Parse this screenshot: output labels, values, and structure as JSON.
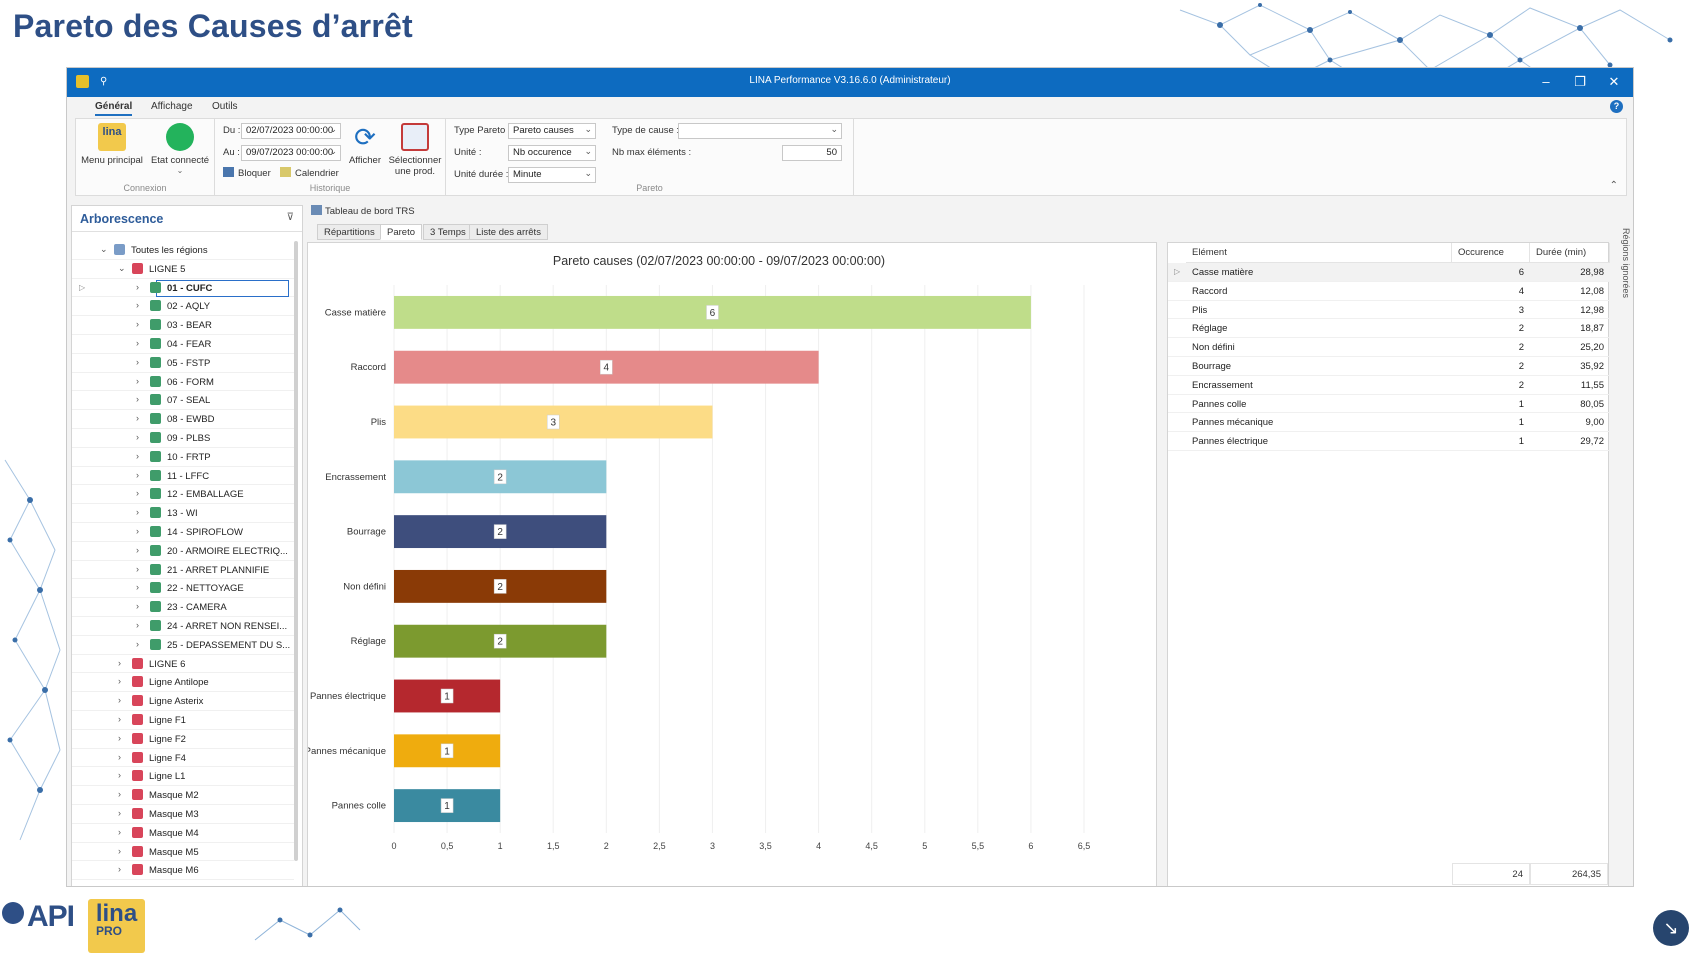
{
  "slide_title": "Pareto des Causes d’arrêt",
  "window": {
    "title": "LINA Performance  V3.16.6.0  (Administrateur)"
  },
  "ribbon_tabs": [
    "Général",
    "Affichage",
    "Outils"
  ],
  "ribbon": {
    "menu_principal": "Menu principal",
    "menu_icon_text": "lina",
    "etat_connecte": "Etat connecté",
    "group_connexion": "Connexion",
    "du_label": "Du :",
    "du_value": "02/07/2023 00:00:00",
    "au_label": "Au :",
    "au_value": "09/07/2023 00:00:00",
    "bloquer": "Bloquer",
    "calendrier": "Calendrier",
    "afficher": "Afficher",
    "selectionner": "Sélectionner",
    "selectionner2": "une prod.",
    "group_historique": "Historique",
    "type_pareto_label": "Type Pareto :",
    "type_pareto_value": "Pareto causes",
    "unite_label": "Unité :",
    "unite_value": "Nb occurence",
    "unite_duree_label": "Unité durée :",
    "unite_duree_value": "Minute",
    "type_cause_label": "Type de cause :",
    "type_cause_value": "",
    "nb_max_label": "Nb max éléments :",
    "nb_max_value": "50",
    "group_pareto": "Pareto"
  },
  "tree": {
    "header": "Arborescence",
    "items": [
      {
        "label": "Toutes les régions",
        "level": 0,
        "expanded": true,
        "color": "#7a9cc7"
      },
      {
        "label": "LIGNE 5",
        "level": 1,
        "expanded": true,
        "color": "#d8455a"
      },
      {
        "label": "01 - CUFC",
        "level": 2,
        "selected": true,
        "color": "#3f9c6a"
      },
      {
        "label": "02 - AQLY",
        "level": 2,
        "color": "#3f9c6a"
      },
      {
        "label": "03 - BEAR",
        "level": 2,
        "color": "#3f9c6a"
      },
      {
        "label": "04 - FEAR",
        "level": 2,
        "color": "#3f9c6a"
      },
      {
        "label": "05 - FSTP",
        "level": 2,
        "color": "#3f9c6a"
      },
      {
        "label": "06 - FORM",
        "level": 2,
        "color": "#3f9c6a"
      },
      {
        "label": "07 - SEAL",
        "level": 2,
        "color": "#3f9c6a"
      },
      {
        "label": "08 - EWBD",
        "level": 2,
        "color": "#3f9c6a"
      },
      {
        "label": "09 - PLBS",
        "level": 2,
        "color": "#3f9c6a"
      },
      {
        "label": "10 - FRTP",
        "level": 2,
        "color": "#3f9c6a"
      },
      {
        "label": "11 - LFFC",
        "level": 2,
        "color": "#3f9c6a"
      },
      {
        "label": "12 - EMBALLAGE",
        "level": 2,
        "color": "#3f9c6a"
      },
      {
        "label": "13 - WI",
        "level": 2,
        "color": "#3f9c6a"
      },
      {
        "label": "14 - SPIROFLOW",
        "level": 2,
        "color": "#3f9c6a"
      },
      {
        "label": "20 - ARMOIRE ELECTRIQ...",
        "level": 2,
        "color": "#3f9c6a"
      },
      {
        "label": "21 - ARRET PLANNIFIE",
        "level": 2,
        "color": "#3f9c6a"
      },
      {
        "label": "22 - NETTOYAGE",
        "level": 2,
        "color": "#3f9c6a"
      },
      {
        "label": "23 - CAMERA",
        "level": 2,
        "color": "#3f9c6a"
      },
      {
        "label": "24 - ARRET NON RENSEI...",
        "level": 2,
        "color": "#3f9c6a"
      },
      {
        "label": "25 - DEPASSEMENT DU S...",
        "level": 2,
        "color": "#3f9c6a"
      },
      {
        "label": "LIGNE 6",
        "level": 1,
        "color": "#d8455a"
      },
      {
        "label": "Ligne Antilope",
        "level": 1,
        "color": "#d8455a"
      },
      {
        "label": "Ligne Asterix",
        "level": 1,
        "color": "#d8455a"
      },
      {
        "label": "Ligne F1",
        "level": 1,
        "color": "#d8455a"
      },
      {
        "label": "Ligne F2",
        "level": 1,
        "color": "#d8455a"
      },
      {
        "label": "Ligne F4",
        "level": 1,
        "color": "#d8455a"
      },
      {
        "label": "Ligne L1",
        "level": 1,
        "color": "#d8455a"
      },
      {
        "label": "Masque M2",
        "level": 1,
        "color": "#d8455a"
      },
      {
        "label": "Masque M3",
        "level": 1,
        "color": "#d8455a"
      },
      {
        "label": "Masque M4",
        "level": 1,
        "color": "#d8455a"
      },
      {
        "label": "Masque M5",
        "level": 1,
        "color": "#d8455a"
      },
      {
        "label": "Masque M6",
        "level": 1,
        "color": "#d8455a"
      }
    ]
  },
  "doc_tab": "Tableau de bord TRS",
  "view_tabs": [
    "Répartitions",
    "Pareto",
    "3 Temps",
    "Liste des arrêts"
  ],
  "active_view_tab": 1,
  "chart_data": {
    "type": "bar",
    "orientation": "horizontal",
    "title": "Pareto causes (02/07/2023 00:00:00 - 09/07/2023 00:00:00)",
    "categories": [
      "Casse matière",
      "Raccord",
      "Plis",
      "Encrassement",
      "Bourrage",
      "Non défini",
      "Réglage",
      "Pannes électrique",
      "Pannes mécanique",
      "Pannes colle"
    ],
    "values": [
      6,
      4,
      3,
      2,
      2,
      2,
      2,
      1,
      1,
      1
    ],
    "colors": [
      "#bfdd8a",
      "#e58a8a",
      "#fcdc86",
      "#8cc7d6",
      "#3e4e7d",
      "#8a3a06",
      "#7c9a2f",
      "#b5282e",
      "#efac0e",
      "#3a8aa0"
    ],
    "xlim": [
      0,
      6.5
    ],
    "xticks": [
      "0",
      "0,5",
      "1",
      "1,5",
      "2",
      "2,5",
      "3",
      "3,5",
      "4",
      "4,5",
      "5",
      "5,5",
      "6",
      "6,5"
    ],
    "xlabel": "",
    "ylabel": ""
  },
  "grid": {
    "headers": [
      "Elément",
      "Occurence",
      "Durée (min)"
    ],
    "rows": [
      {
        "element": "Casse matière",
        "occ": "6",
        "duree": "28,98"
      },
      {
        "element": "Raccord",
        "occ": "4",
        "duree": "12,08"
      },
      {
        "element": "Plis",
        "occ": "3",
        "duree": "12,98"
      },
      {
        "element": "Réglage",
        "occ": "2",
        "duree": "18,87"
      },
      {
        "element": "Non défini",
        "occ": "2",
        "duree": "25,20"
      },
      {
        "element": "Bourrage",
        "occ": "2",
        "duree": "35,92"
      },
      {
        "element": "Encrassement",
        "occ": "2",
        "duree": "11,55"
      },
      {
        "element": "Pannes colle",
        "occ": "1",
        "duree": "80,05"
      },
      {
        "element": "Pannes mécanique",
        "occ": "1",
        "duree": "9,00"
      },
      {
        "element": "Pannes électrique",
        "occ": "1",
        "duree": "29,72"
      }
    ],
    "total_occ": "24",
    "total_duree": "264,35"
  },
  "side_panel_label": "Régions ignorées",
  "logo_api": "API",
  "logo_lina": "lina",
  "logo_pro": "PRO"
}
